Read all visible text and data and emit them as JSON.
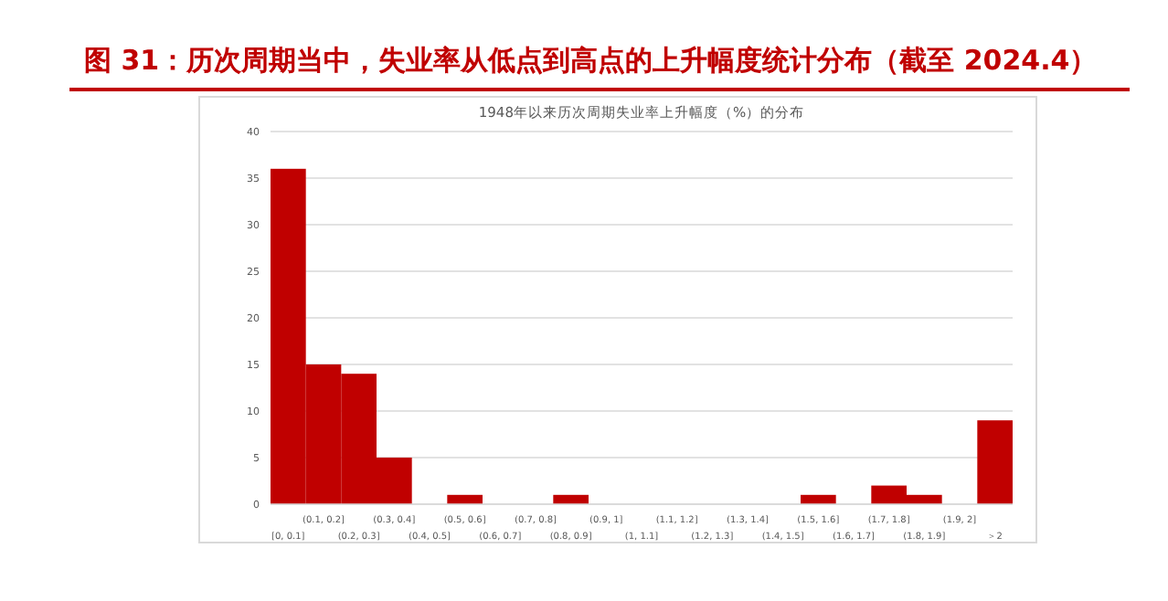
{
  "chart_data": {
    "type": "bar",
    "title": "图 31：历次周期当中，失业率从低点到高点的上升幅度统计分布（截至 2024.4）",
    "subtitle": "1948年以来历次周期失业率上升幅度（%）的分布",
    "categories": [
      "[0, 0.1]",
      "(0.1, 0.2]",
      "(0.2, 0.3]",
      "(0.3, 0.4]",
      "(0.4, 0.5]",
      "(0.5, 0.6]",
      "(0.6, 0.7]",
      "(0.7, 0.8]",
      "(0.8, 0.9]",
      "(0.9, 1]",
      "(1, 1.1]",
      "(1.1, 1.2]",
      "(1.2, 1.3]",
      "(1.3, 1.4]",
      "(1.4, 1.5]",
      "(1.5, 1.6]",
      "(1.6, 1.7]",
      "(1.7, 1.8]",
      "(1.8, 1.9]",
      "(1.9, 2]",
      "＞2"
    ],
    "values": [
      36,
      15,
      14,
      5,
      0,
      1,
      0,
      0,
      1,
      0,
      0,
      0,
      0,
      0,
      0,
      1,
      0,
      2,
      1,
      0,
      9
    ],
    "color": "#c00000",
    "ylim": [
      0,
      40
    ],
    "yticks": [
      0,
      5,
      10,
      15,
      20,
      25,
      30,
      35,
      40
    ],
    "grid": "y"
  }
}
